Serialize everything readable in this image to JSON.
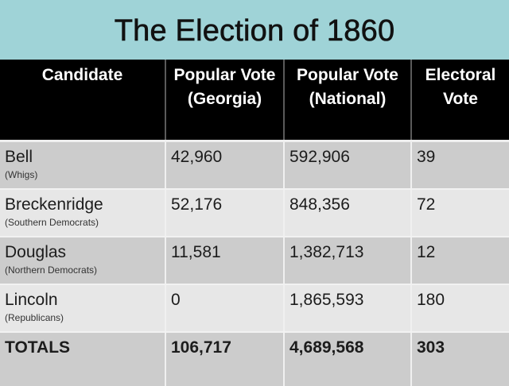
{
  "title": "The Election of 1860",
  "colors": {
    "title_bg": "#9fd3d7",
    "header_bg": "#000000",
    "row_dark": "#cccccc",
    "row_light": "#e7e7e7"
  },
  "table": {
    "headers": [
      "Candidate",
      "Popular Vote (Georgia)",
      "Popular Vote (National)",
      "Electoral Vote"
    ],
    "rows": [
      {
        "candidate": "Bell",
        "party": "(Whigs)",
        "georgia": "42,960",
        "national": "592,906",
        "electoral": "39"
      },
      {
        "candidate": "Breckenridge",
        "party": "(Southern Democrats)",
        "georgia": "52,176",
        "national": "848,356",
        "electoral": "72"
      },
      {
        "candidate": "Douglas",
        "party": "(Northern Democrats)",
        "georgia": "11,581",
        "national": "1,382,713",
        "electoral": "12"
      },
      {
        "candidate": "Lincoln",
        "party": "(Republicans)",
        "georgia": "0",
        "national": "1,865,593",
        "electoral": "180"
      }
    ],
    "totals": {
      "label": "TOTALS",
      "georgia": "106,717",
      "national": "4,689,568",
      "electoral": "303"
    }
  }
}
